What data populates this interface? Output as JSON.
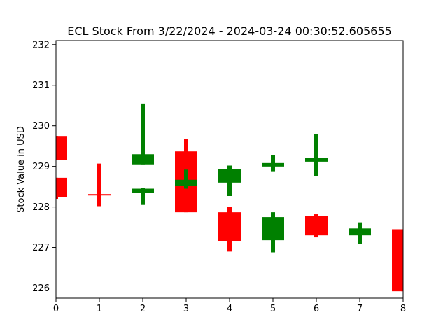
{
  "chart_data": {
    "type": "candlestick",
    "title": "ECL Stock From 3/22/2024 - 2024-03-24 00:30:52.605655",
    "xlabel": "",
    "ylabel": "Stock Value in USD",
    "xlim": [
      0,
      8
    ],
    "ylim": [
      225.75,
      232.1
    ],
    "x_ticks": [
      0,
      1,
      2,
      3,
      4,
      5,
      6,
      7,
      8
    ],
    "y_ticks": [
      226,
      227,
      228,
      229,
      230,
      231,
      232
    ],
    "grid": false,
    "colors": {
      "up": "#008000",
      "down": "#ff0000"
    },
    "candles": [
      {
        "x": 0,
        "open": 229.75,
        "close": 229.15,
        "high": 229.75,
        "low": 229.15,
        "direction": "down"
      },
      {
        "x": 0,
        "open": 228.72,
        "close": 228.25,
        "high": 228.72,
        "low": 228.2,
        "direction": "down"
      },
      {
        "x": 1,
        "open": 228.3,
        "close": 228.3,
        "high": 229.07,
        "low": 228.02,
        "direction": "down"
      },
      {
        "x": 2,
        "open": 229.05,
        "close": 229.3,
        "high": 230.55,
        "low": 229.05,
        "direction": "up"
      },
      {
        "x": 2,
        "open": 228.35,
        "close": 228.45,
        "high": 228.47,
        "low": 228.05,
        "direction": "up"
      },
      {
        "x": 3,
        "open": 229.37,
        "close": 227.87,
        "high": 229.67,
        "low": 227.87,
        "direction": "down"
      },
      {
        "x": 3,
        "open": 228.52,
        "close": 228.67,
        "high": 228.92,
        "low": 228.45,
        "direction": "up"
      },
      {
        "x": 4,
        "open": 228.6,
        "close": 228.93,
        "high": 229.02,
        "low": 228.27,
        "direction": "up"
      },
      {
        "x": 4,
        "open": 227.87,
        "close": 227.15,
        "high": 228.0,
        "low": 226.9,
        "direction": "down"
      },
      {
        "x": 5,
        "open": 229.0,
        "close": 229.08,
        "high": 229.28,
        "low": 228.88,
        "direction": "up"
      },
      {
        "x": 5,
        "open": 227.18,
        "close": 227.75,
        "high": 227.87,
        "low": 226.88,
        "direction": "up"
      },
      {
        "x": 6,
        "open": 229.12,
        "close": 229.2,
        "high": 229.8,
        "low": 228.77,
        "direction": "up"
      },
      {
        "x": 6,
        "open": 227.77,
        "close": 227.3,
        "high": 227.82,
        "low": 227.25,
        "direction": "down"
      },
      {
        "x": 7,
        "open": 227.3,
        "close": 227.47,
        "high": 227.62,
        "low": 227.08,
        "direction": "up"
      },
      {
        "x": 8,
        "open": 227.45,
        "close": 225.92,
        "high": 227.45,
        "low": 225.92,
        "direction": "down"
      }
    ]
  }
}
